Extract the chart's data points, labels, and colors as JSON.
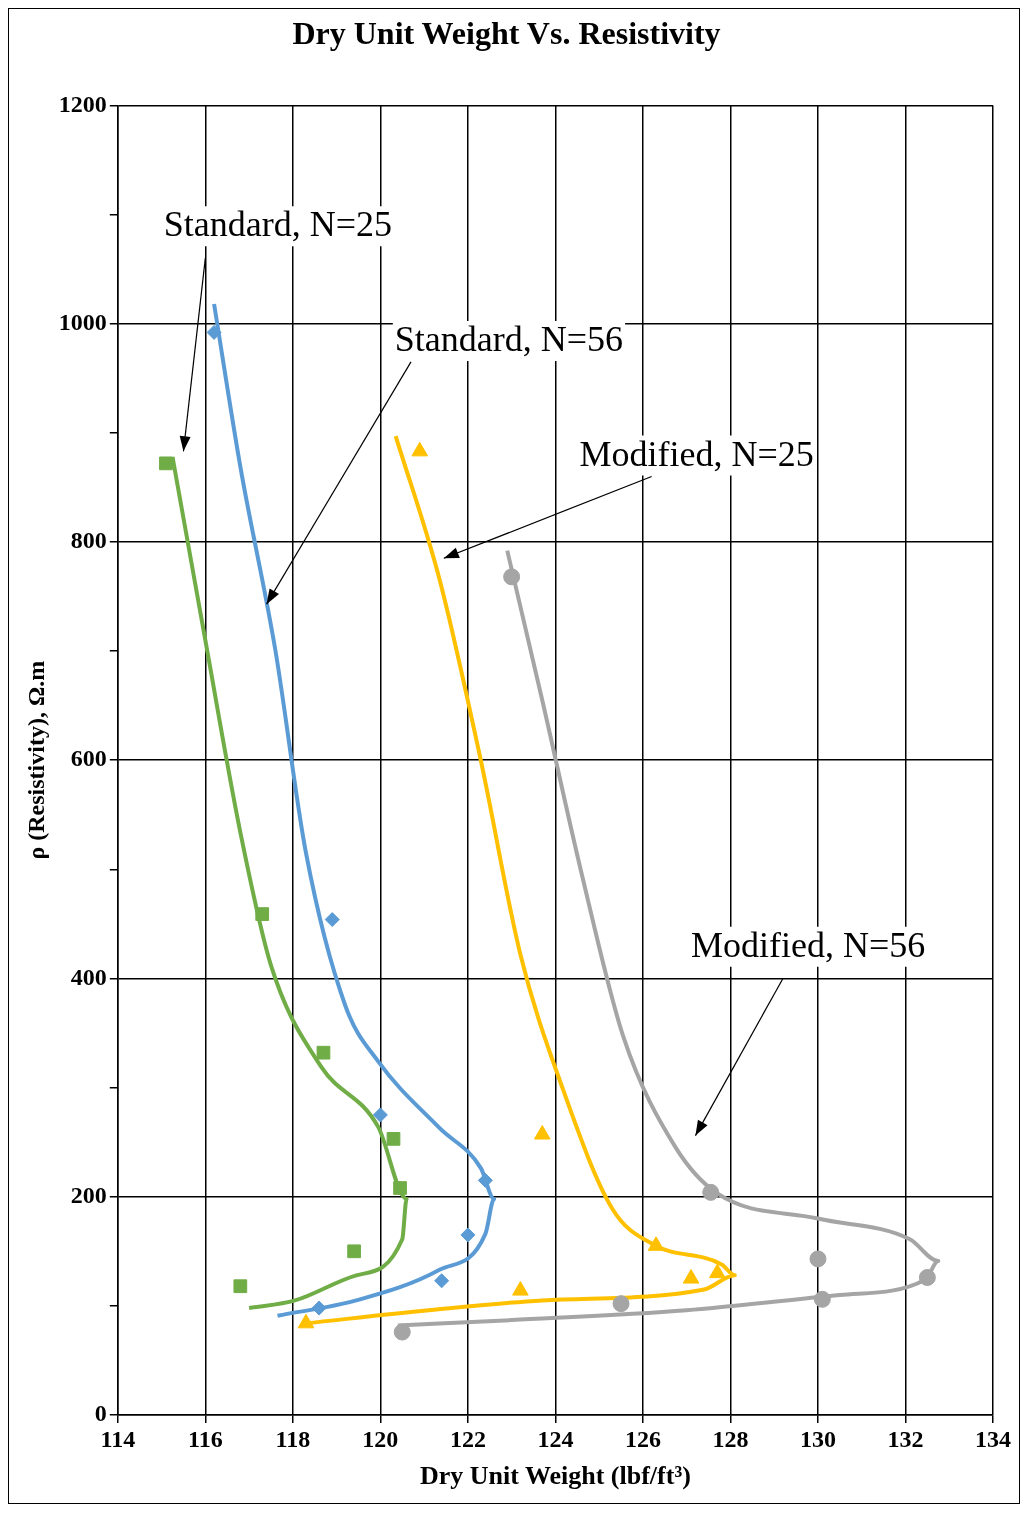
{
  "chart_data": {
    "type": "scatter",
    "title": "Dry Unit Weight Vs. Resistivity",
    "xlabel": "Dry Unit Weight (lbf/ft³)",
    "ylabel": "ρ (Resistivity), Ω.m",
    "xlim": [
      114,
      134
    ],
    "xticks": [
      114,
      116,
      118,
      120,
      122,
      124,
      126,
      128,
      130,
      132,
      134
    ],
    "ylim": [
      0,
      1200
    ],
    "yticks": [
      0,
      {
        "value": 100,
        "label": null
      },
      200,
      {
        "value": 300,
        "label": null
      },
      400,
      {
        "value": 500,
        "label": null
      },
      600,
      {
        "value": 700,
        "label": null
      },
      800,
      {
        "value": 900,
        "label": null
      },
      1000,
      {
        "value": 1100,
        "label": null
      },
      1200
    ],
    "grid": true,
    "legend": false,
    "series": [
      {
        "type": "scatter",
        "marker": "square",
        "color": "#70ad47",
        "x": [
          115.1,
          117.3,
          118.7,
          120.3,
          120.45,
          119.4,
          116.8
        ],
        "values": [
          872,
          459,
          332,
          253,
          208,
          150,
          118
        ]
      },
      {
        "type": "scatter",
        "marker": "diamond",
        "color": "#5b9bd5",
        "x": [
          116.2,
          118.9,
          120.0,
          122.4,
          122.0,
          121.4,
          118.6
        ],
        "values": [
          992,
          454,
          275,
          215,
          165,
          123,
          98
        ]
      },
      {
        "type": "scatter",
        "marker": "triangle",
        "color": "#ffc000",
        "x": [
          120.9,
          123.7,
          126.3,
          127.1,
          127.7,
          123.2,
          118.3
        ],
        "values": [
          883,
          257,
          155,
          125,
          130,
          114,
          84
        ]
      },
      {
        "type": "scatter",
        "marker": "circle",
        "color": "#a5a5a5",
        "x": [
          123.0,
          127.55,
          130.0,
          132.5,
          130.1,
          125.5,
          120.5
        ],
        "values": [
          768,
          204,
          143,
          126,
          106,
          102,
          76
        ]
      },
      {
        "type": "line",
        "marker": "none",
        "color": "#70ad47",
        "x": [
          115.25,
          116.0,
          116.8,
          117.5,
          118.65,
          119.95,
          120.6,
          120.5,
          119.45,
          118.05,
          117.0
        ],
        "values": [
          878,
          710,
          534,
          412,
          319,
          264,
          198,
          161,
          128,
          105,
          98
        ]
      },
      {
        "type": "line",
        "marker": "none",
        "color": "#5b9bd5",
        "x": [
          116.2,
          116.8,
          117.6,
          118.3,
          119.2,
          119.95,
          121.35,
          122.3,
          122.6,
          122.4,
          121.35,
          119.45,
          117.65
        ],
        "values": [
          1018,
          869,
          701,
          515,
          375,
          324,
          263,
          226,
          198,
          166,
          133,
          105,
          91
        ]
      },
      {
        "type": "line",
        "marker": "none",
        "color": "#ffc000",
        "x": [
          120.35,
          121.35,
          122.3,
          123.2,
          124.15,
          125.3,
          126.25,
          127.8,
          128.1,
          127.4,
          123.7,
          121.1,
          118.3
        ],
        "values": [
          897,
          766,
          599,
          422,
          301,
          189,
          156,
          138,
          128,
          115,
          105,
          96,
          84
        ]
      },
      {
        "type": "line",
        "marker": "none",
        "color": "#a5a5a5",
        "x": [
          122.9,
          123.7,
          124.6,
          125.55,
          126.75,
          127.7,
          130.0,
          132.1,
          132.75,
          132.45,
          130.5,
          127.0,
          123.0,
          120.4
        ],
        "values": [
          792,
          655,
          496,
          347,
          245,
          203,
          180,
          161,
          141,
          124,
          110,
          96,
          87,
          82
        ]
      }
    ],
    "annotations": [
      "Standard, N=25",
      {
        "text": "Standard, N=56",
        "x": 117.4,
        "y": 743
      },
      "Modified, N=25",
      "Modified, N=56"
    ]
  }
}
